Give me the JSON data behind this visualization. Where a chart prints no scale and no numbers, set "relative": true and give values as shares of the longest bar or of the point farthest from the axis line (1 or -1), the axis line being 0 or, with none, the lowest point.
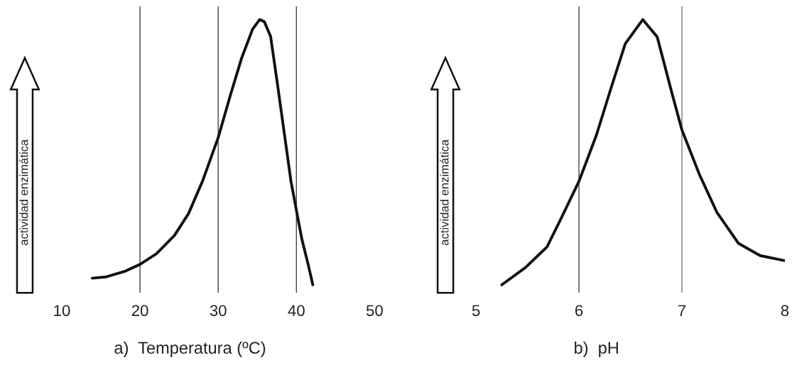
{
  "chart_data": [
    {
      "type": "line",
      "xlabel": "a)  Temperatura (ºC)",
      "ylabel": "actividad enzimática",
      "relative": true,
      "tick_labels": "x",
      "xlim": [
        10,
        50
      ],
      "xticks": [
        10,
        20,
        30,
        40,
        50
      ],
      "grid": false,
      "marker": "none",
      "line_style": "solid",
      "ref_lines": [
        {
          "axis": "x",
          "value": 20,
          "color": "#444444"
        },
        {
          "axis": "x",
          "value": 30,
          "color": "#444444"
        },
        {
          "axis": "x",
          "value": 40,
          "color": "#444444"
        }
      ],
      "series": [
        {
          "color": "#111111",
          "x": [
            13.9,
            15.7,
            18.0,
            20,
            22.1,
            24.4,
            26.2,
            28.0,
            30,
            31.6,
            33.0,
            34.4,
            35.3,
            35.9,
            36.7,
            37.5,
            38.4,
            39.3,
            40,
            40.7,
            41.5,
            42.1
          ],
          "values": [
            0.025,
            0.03,
            0.05,
            0.077,
            0.117,
            0.186,
            0.268,
            0.391,
            0.555,
            0.719,
            0.855,
            0.964,
            1,
            0.992,
            0.937,
            0.773,
            0.582,
            0.391,
            0.281,
            0.172,
            0.077,
            0
          ]
        }
      ]
    },
    {
      "type": "line",
      "xlabel": "b)  pH",
      "ylabel": "actividad enzimática",
      "relative": true,
      "tick_labels": "x",
      "xlim": [
        5,
        8
      ],
      "xticks": [
        5,
        6,
        7,
        8
      ],
      "grid": false,
      "marker": "none",
      "line_style": "solid",
      "ref_lines": [
        {
          "axis": "x",
          "value": 6,
          "color": "#444444"
        },
        {
          "axis": "x",
          "value": 7,
          "color": "#777777"
        }
      ],
      "series": [
        {
          "color": "#111111",
          "x": [
            5.25,
            5.48,
            5.69,
            5.83,
            6.0,
            6.17,
            6.31,
            6.45,
            6.62,
            6.76,
            6.9,
            7.0,
            7.17,
            7.34,
            7.55,
            7.76,
            8.0
          ],
          "values": [
            0,
            0.065,
            0.143,
            0.253,
            0.39,
            0.565,
            0.74,
            0.909,
            1,
            0.935,
            0.727,
            0.584,
            0.416,
            0.273,
            0.156,
            0.11,
            0.091
          ]
        }
      ]
    }
  ]
}
